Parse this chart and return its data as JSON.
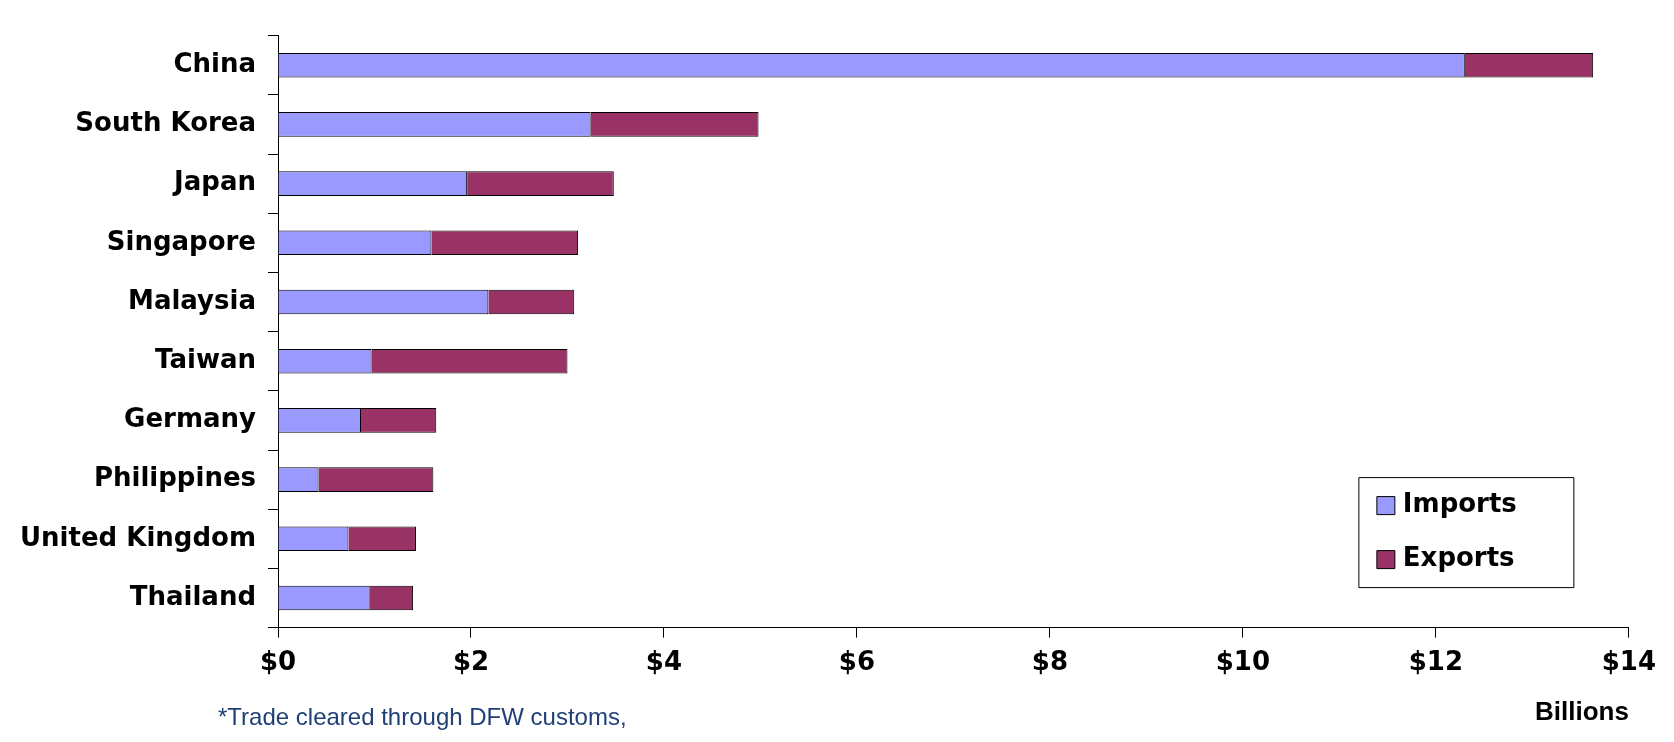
{
  "chart_data": {
    "type": "bar",
    "orientation": "horizontal",
    "stacked": true,
    "categories": [
      "China",
      "South Korea",
      "Japan",
      "Singapore",
      "Malaysia",
      "Taiwan",
      "Germany",
      "Philippines",
      "United Kingdom",
      "Thailand"
    ],
    "series": [
      {
        "name": "Imports",
        "color": "#9999ff",
        "values": [
          12.3,
          3.24,
          1.96,
          1.59,
          2.18,
          0.97,
          0.86,
          0.42,
          0.73,
          0.95
        ]
      },
      {
        "name": "Exports",
        "color": "#993366",
        "values": [
          1.33,
          1.74,
          1.52,
          1.52,
          0.89,
          2.03,
          0.78,
          1.19,
          0.7,
          0.45
        ]
      }
    ],
    "xlim": [
      0,
      14
    ],
    "xticks": [
      {
        "value": 0,
        "label": "$0"
      },
      {
        "value": 2,
        "label": "$2"
      },
      {
        "value": 4,
        "label": "$4"
      },
      {
        "value": 6,
        "label": "$6"
      },
      {
        "value": 8,
        "label": "$8"
      },
      {
        "value": 10,
        "label": "$10"
      },
      {
        "value": 12,
        "label": "$12"
      },
      {
        "value": 14,
        "label": "$14"
      }
    ],
    "xlabel": "Billions",
    "grid": false,
    "legend": "bottom right",
    "annotations": [
      "*Trade cleared through DFW customs,"
    ]
  }
}
